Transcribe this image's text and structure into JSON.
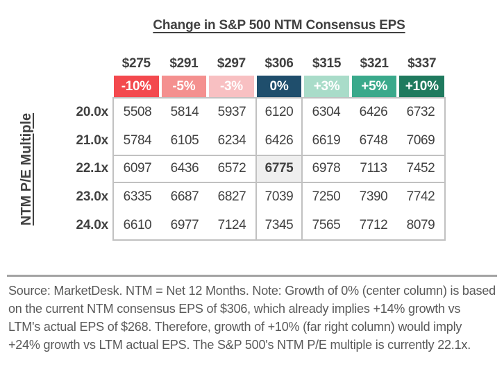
{
  "chart_data": {
    "type": "table",
    "title": "Change in S&P 500 NTM Consensus EPS",
    "y_axis_label": "NTM P/E Multiple",
    "columns_eps": [
      "$275",
      "$291",
      "$297",
      "$306",
      "$315",
      "$321",
      "$337"
    ],
    "columns_growth": [
      "-10%",
      "-5%",
      "-3%",
      "0%",
      "+3%",
      "+5%",
      "+10%"
    ],
    "column_colors": [
      "#f3494e",
      "#f4908f",
      "#f8c0c2",
      "#1f4e6c",
      "#a9dcc9",
      "#3aa98b",
      "#1f7a5e"
    ],
    "rows_pe": [
      "20.0x",
      "21.0x",
      "22.1x",
      "23.0x",
      "24.0x"
    ],
    "matrix": [
      [
        5508,
        5814,
        5937,
        6120,
        6304,
        6426,
        6732
      ],
      [
        5784,
        6105,
        6234,
        6426,
        6619,
        6748,
        7069
      ],
      [
        6097,
        6436,
        6572,
        6775,
        6978,
        7113,
        7452
      ],
      [
        6335,
        6687,
        6827,
        7039,
        7250,
        7390,
        7742
      ],
      [
        6610,
        6977,
        7124,
        7345,
        7565,
        7712,
        8079
      ]
    ],
    "highlight": {
      "row_index": 2,
      "col_index": 3,
      "current_value": 6775,
      "cell_bg": "#efefef"
    },
    "layout": {
      "grid": "on",
      "border_color": "#c1c1c1",
      "body_text_color": "#414141",
      "header_text_color": "#ffffff"
    }
  },
  "footer": {
    "note": "Source: MarketDesk. NTM = Net 12 Months. Note: Growth of 0% (center column) is based on the current NTM consensus EPS of $306, which already implies +14% growth vs LTM's actual EPS of $268. Therefore, growth of +10% (far right column) would imply +24% growth vs LTM actual EPS. The S&P 500's NTM P/E multiple is currently 22.1x."
  }
}
